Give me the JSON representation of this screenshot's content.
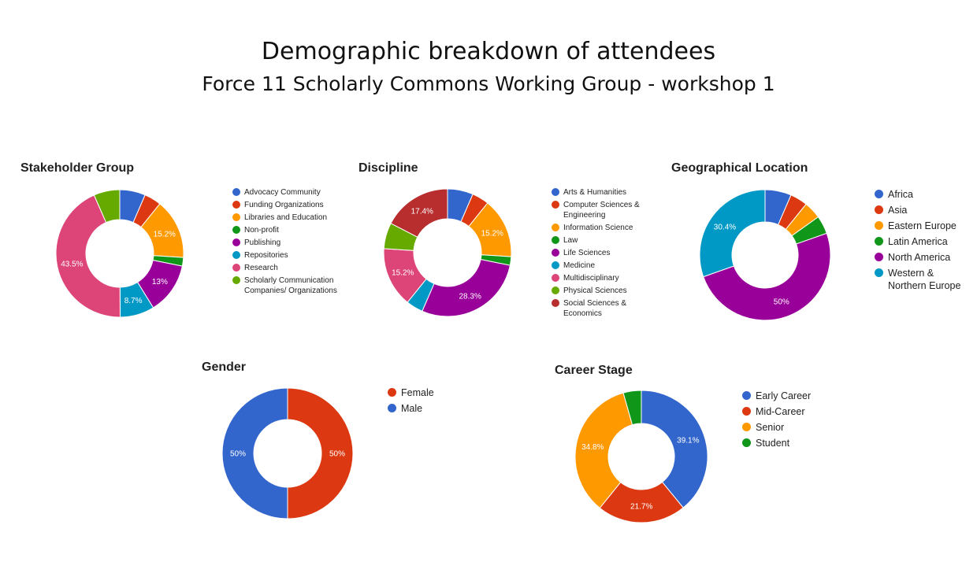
{
  "slide": {
    "title": "Demographic breakdown of attendees",
    "subtitle": "Force 11 Scholarly Commons Working Group - workshop 1"
  },
  "chart_data": [
    {
      "id": "stakeholder",
      "type": "pie",
      "donut": true,
      "title": "Stakeholder Group",
      "legend_position": "right",
      "categories": [
        "Advocacy Community",
        "Funding Organizations",
        "Libraries and Education",
        "Non-profit",
        "Publishing",
        "Repositories",
        "Research",
        "Scholarly Communication Companies/ Organizations"
      ],
      "values": [
        6.5,
        4.3,
        15.2,
        2.2,
        13,
        8.7,
        43.5,
        6.6
      ],
      "labels": [
        "",
        "",
        "15.2%",
        "",
        "13%",
        "8.7%",
        "43.5%",
        ""
      ],
      "colors": [
        "#3366cc",
        "#dc3912",
        "#ff9900",
        "#109618",
        "#990099",
        "#0099c6",
        "#dd4477",
        "#66aa00"
      ]
    },
    {
      "id": "discipline",
      "type": "pie",
      "donut": true,
      "title": "Discipline",
      "legend_position": "right",
      "categories": [
        "Arts & Humanities",
        "Computer Sciences & Engineering",
        "Information Science",
        "Law",
        "Life Sciences",
        "Medicine",
        "Multidisciplinary",
        "Physical Sciences",
        "Social Sciences & Economics"
      ],
      "values": [
        6.5,
        4.3,
        15.2,
        2.2,
        28.3,
        4.3,
        15.2,
        6.6,
        17.4
      ],
      "labels": [
        "",
        "",
        "15.2%",
        "",
        "28.3%",
        "",
        "15.2%",
        "",
        "17.4%"
      ],
      "colors": [
        "#3366cc",
        "#dc3912",
        "#ff9900",
        "#109618",
        "#990099",
        "#0099c6",
        "#dd4477",
        "#66aa00",
        "#b82e2e"
      ]
    },
    {
      "id": "geography",
      "type": "pie",
      "donut": true,
      "title": "Geographical Location",
      "legend_position": "right",
      "categories": [
        "Africa",
        "Asia",
        "Eastern Europe",
        "Latin America",
        "North America",
        "Western & Northern Europe"
      ],
      "values": [
        6.5,
        4.3,
        4.3,
        4.5,
        50,
        30.4
      ],
      "labels": [
        "",
        "",
        "",
        "",
        "50%",
        "30.4%"
      ],
      "colors": [
        "#3366cc",
        "#dc3912",
        "#ff9900",
        "#109618",
        "#990099",
        "#0099c6"
      ]
    },
    {
      "id": "gender",
      "type": "pie",
      "donut": true,
      "title": "Gender",
      "legend_position": "right",
      "categories": [
        "Female",
        "Male"
      ],
      "values": [
        50,
        50
      ],
      "labels": [
        "50%",
        "50%"
      ],
      "colors": [
        "#dc3912",
        "#3366cc"
      ]
    },
    {
      "id": "career",
      "type": "pie",
      "donut": true,
      "title": "Career Stage",
      "legend_position": "right",
      "categories": [
        "Early Career",
        "Mid-Career",
        "Senior",
        "Student"
      ],
      "values": [
        39.1,
        21.7,
        34.8,
        4.4
      ],
      "labels": [
        "39.1%",
        "21.7%",
        "34.8%",
        ""
      ],
      "colors": [
        "#3366cc",
        "#dc3912",
        "#ff9900",
        "#109618"
      ]
    }
  ]
}
